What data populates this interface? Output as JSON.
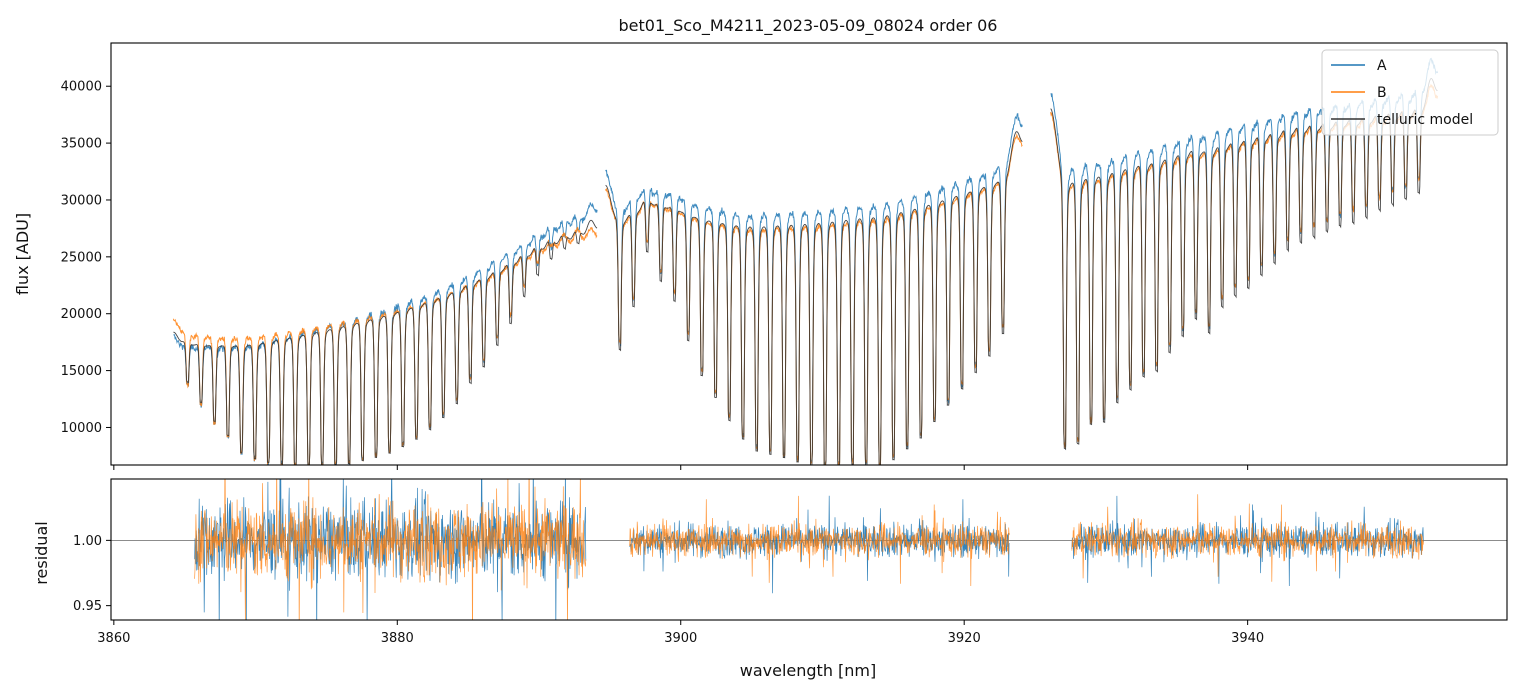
{
  "chart_data": [
    {
      "type": "line",
      "title": "bet01_Sco_M4211_2023-05-09_08024  order 06",
      "xlabel": "",
      "ylabel": "flux [ADU]",
      "xlim": [
        3859.8,
        3958.3
      ],
      "ylim": [
        6700,
        43800
      ],
      "yticks": [
        10000,
        15000,
        20000,
        25000,
        30000,
        35000,
        40000
      ],
      "ytick_labels": [
        "10000",
        "15000",
        "20000",
        "25000",
        "30000",
        "35000",
        "40000"
      ],
      "xticks": [
        3860,
        3880,
        3900,
        3920,
        3940
      ],
      "legend_position": "top-right",
      "segments": [
        {
          "x_start": 3864.2,
          "x_end": 3894.1,
          "a_continuum": [
            18000,
            29800
          ],
          "b_continuum": [
            19500,
            27600
          ],
          "line_spacing": 1.01,
          "absorption_minima": [
            13800,
            12100,
            10500,
            9300,
            7800,
            7300,
            7000,
            6900,
            6800,
            6800,
            6800,
            6900,
            7000,
            7300,
            7600,
            8000,
            8600,
            9300,
            10200,
            11300,
            12600,
            14500,
            16000,
            18000,
            20000,
            22500,
            24500,
            26000,
            27000,
            27500
          ]
        },
        {
          "x_start": 3894.7,
          "x_end": 3924.1,
          "a_continuum": [
            32500,
            37500
          ],
          "b_continuum": [
            31000,
            35800
          ],
          "line_spacing": 1.0,
          "absorption_minima": [
            17500,
            21500,
            26500,
            23800,
            22000,
            18400,
            15200,
            13200,
            11100,
            9400,
            8300,
            8000,
            7700,
            7300,
            7000,
            6800,
            6900,
            7100,
            7000,
            6800,
            7500,
            8500,
            9500,
            11000,
            12500,
            14000,
            15500,
            17000,
            19000
          ]
        },
        {
          "x_start": 3926.1,
          "x_end": 3953.4,
          "a_continuum": [
            39500,
            42500
          ],
          "b_continuum": [
            37800,
            40200
          ],
          "line_spacing": 0.97,
          "absorption_minima": [
            8500,
            9000,
            10800,
            11000,
            12800,
            14000,
            15200,
            15700,
            17400,
            18900,
            20500,
            19200,
            21600,
            22600,
            23300,
            24500,
            25600,
            26800,
            27500,
            28000,
            28500,
            29000,
            29300,
            29800,
            30500,
            31000,
            31500,
            32000
          ]
        }
      ],
      "series": [
        {
          "name": "A",
          "color": "#1f77b4"
        },
        {
          "name": "B",
          "color": "#ff7f0e"
        },
        {
          "name": "telluric model",
          "color": "#333333"
        }
      ]
    },
    {
      "type": "line",
      "title": "",
      "xlabel": "wavelength [nm]",
      "ylabel": "residual",
      "xlim": [
        3859.8,
        3958.3
      ],
      "ylim": [
        0.939,
        1.047
      ],
      "yticks": [
        0.95,
        1.0
      ],
      "ytick_labels": [
        "0.95",
        "1.00"
      ],
      "xticks": [
        3860,
        3880,
        3900,
        3920,
        3940
      ],
      "xtick_labels": [
        "3860",
        "3880",
        "3900",
        "3920",
        "3940"
      ],
      "reference_line": 1.0,
      "segments": [
        {
          "x_start": 3865.7,
          "x_end": 3893.3,
          "noise": 0.028
        },
        {
          "x_start": 3896.4,
          "x_end": 3923.2,
          "noise": 0.012
        },
        {
          "x_start": 3927.6,
          "x_end": 3952.4,
          "noise": 0.012
        }
      ],
      "series": [
        {
          "name": "A",
          "color": "#1f77b4"
        },
        {
          "name": "B",
          "color": "#ff7f0e"
        }
      ]
    }
  ]
}
